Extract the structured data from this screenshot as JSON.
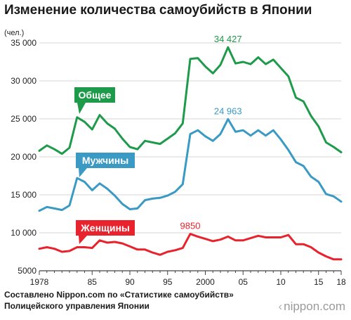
{
  "title": "Изменение количества самоубийств в Японии",
  "unit_label": "(чел.)",
  "source_lines": [
    "Составлено Nippon.com по «Статистике самоубийств»",
    "Полицейского управления Японии"
  ],
  "logo_text": "nippon.com",
  "chart_data": {
    "type": "line",
    "title": "Изменение количества самоубийств в Японии",
    "ylabel": "(чел.)",
    "xlabel": "",
    "ylim": [
      5000,
      35000
    ],
    "xlim": [
      1978,
      2018
    ],
    "yticks": [
      {
        "value": 5000,
        "label": "5000"
      },
      {
        "value": 10000,
        "label": "10 000"
      },
      {
        "value": 15000,
        "label": "15 000"
      },
      {
        "value": 20000,
        "label": "20 000"
      },
      {
        "value": 25000,
        "label": "25 000"
      },
      {
        "value": 30000,
        "label": "30 000"
      },
      {
        "value": 35000,
        "label": "35 000"
      }
    ],
    "xticks": [
      {
        "value": 1978,
        "label": "1978"
      },
      {
        "value": 1985,
        "label": "85"
      },
      {
        "value": 1990,
        "label": "90"
      },
      {
        "value": 1995,
        "label": "95"
      },
      {
        "value": 2000,
        "label": "2000"
      },
      {
        "value": 2005,
        "label": "05"
      },
      {
        "value": 2010,
        "label": "10"
      },
      {
        "value": 2015,
        "label": "15"
      },
      {
        "value": 2018,
        "label": "18"
      }
    ],
    "grid": true,
    "x": [
      1978,
      1979,
      1980,
      1981,
      1982,
      1983,
      1984,
      1985,
      1986,
      1987,
      1988,
      1989,
      1990,
      1991,
      1992,
      1993,
      1994,
      1995,
      1996,
      1997,
      1998,
      1999,
      2000,
      2001,
      2002,
      2003,
      2004,
      2005,
      2006,
      2007,
      2008,
      2009,
      2010,
      2011,
      2012,
      2013,
      2014,
      2015,
      2016,
      2017,
      2018
    ],
    "series": [
      {
        "name": "Общее",
        "color": "#1e9a4b",
        "peak_label": "34 427",
        "peak_year": 2003,
        "values": [
          20800,
          21500,
          21000,
          20400,
          21200,
          25200,
          24600,
          23600,
          25500,
          24400,
          23700,
          22400,
          21300,
          21000,
          22100,
          21900,
          21700,
          22400,
          23100,
          24400,
          32900,
          33000,
          31900,
          31000,
          32100,
          34427,
          32300,
          32500,
          32200,
          33100,
          32200,
          32800,
          31700,
          30600,
          27800,
          27300,
          25400,
          24000,
          21900,
          21300,
          20600
        ]
      },
      {
        "name": "Мужчины",
        "color": "#3a9ac4",
        "peak_label": "24 963",
        "peak_year": 2003,
        "values": [
          12900,
          13400,
          13200,
          13000,
          13600,
          17200,
          16700,
          15600,
          16500,
          15800,
          14900,
          13800,
          13100,
          13200,
          14300,
          14500,
          14600,
          14900,
          15400,
          16400,
          23000,
          23500,
          22700,
          22100,
          23000,
          24963,
          23300,
          23500,
          22800,
          23500,
          22800,
          23500,
          22300,
          20900,
          19300,
          18800,
          17400,
          16700,
          15100,
          14800,
          14100
        ]
      },
      {
        "name": "Женщины",
        "color": "#e8232e",
        "peak_label": "9850",
        "peak_year": 1998,
        "values": [
          7900,
          8100,
          7900,
          7500,
          7600,
          8100,
          8100,
          8000,
          9000,
          8700,
          8800,
          8600,
          8200,
          7800,
          7800,
          7400,
          7100,
          7500,
          7700,
          8000,
          9850,
          9500,
          9200,
          8900,
          9100,
          9500,
          9000,
          9000,
          9300,
          9600,
          9400,
          9400,
          9400,
          9700,
          8500,
          8500,
          8100,
          7400,
          6900,
          6500,
          6500
        ]
      }
    ]
  }
}
